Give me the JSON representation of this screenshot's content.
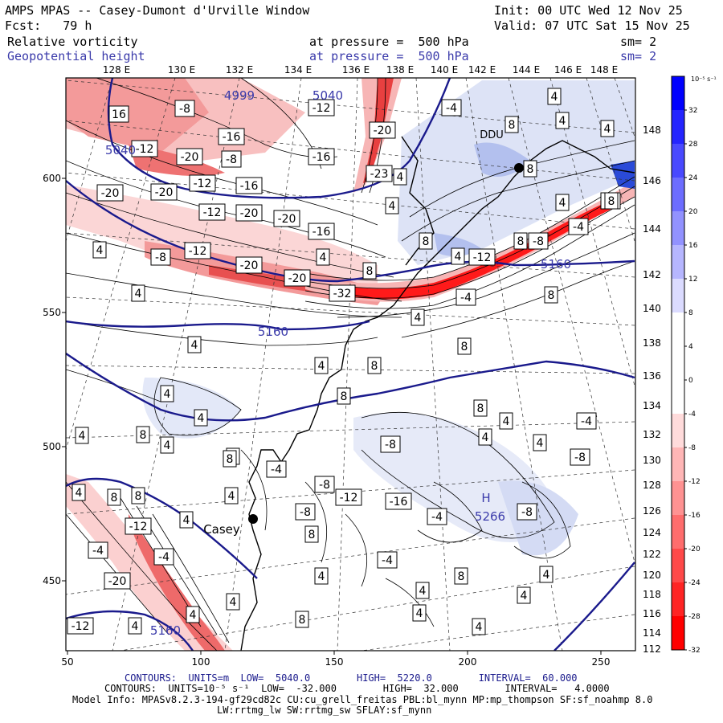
{
  "header": {
    "title": "AMPS MPAS -- Casey-Dumont d'Urville Window",
    "init": "Init: 00 UTC Wed 12 Nov 25",
    "fcst": "Fcst:   79 h",
    "valid": "Valid: 07 UTC Sat 15 Nov 25",
    "field1_name": "Relative vorticity",
    "field1_level": "at pressure =  500 hPa",
    "field1_sm": "sm= 2",
    "field2_name": "Geopotential height",
    "field2_level": "at pressure =  500 hPa",
    "field2_sm": "sm= 2"
  },
  "colors": {
    "contour_blue": "#1a1a8c",
    "text_blue": "#3a3aaa",
    "neg_dark": "#ff0000",
    "pos_dark": "#0000ff"
  },
  "axes": {
    "top_lon_labels": [
      "128 E",
      "130 E",
      "132 E",
      "134 E",
      "136 E",
      "138 E",
      "140 E",
      "142 E",
      "144 E",
      "146 E",
      "148 E"
    ],
    "bottom_x_ticks": [
      "50",
      "100",
      "150",
      "200",
      "250"
    ],
    "left_y_ticks": [
      "600",
      "550",
      "500",
      "450"
    ],
    "right_lat_labels": [
      "148",
      "146",
      "144",
      "142",
      "140",
      "138",
      "136",
      "134",
      "132",
      "130",
      "128",
      "126",
      "124",
      "122",
      "120",
      "118",
      "116",
      "114",
      "112"
    ]
  },
  "colorbar": {
    "unit_label": "10⁻⁵ s⁻¹",
    "tick_labels": [
      "32",
      "28",
      "24",
      "20",
      "16",
      "12",
      "8",
      "4",
      "0",
      "-4",
      "-8",
      "-12",
      "-16",
      "-20",
      "-24",
      "-28",
      "-32"
    ],
    "levels": [
      32,
      28,
      24,
      20,
      16,
      12,
      8,
      4,
      0,
      -4,
      -8,
      -12,
      -16,
      -20,
      -24,
      -28,
      -32
    ]
  },
  "map_labels": {
    "height_labels": [
      "4999",
      "5040",
      "5040",
      "5160",
      "5160",
      "5160"
    ],
    "high_marker": "H",
    "high_value": "5266",
    "station_casey": "Casey",
    "station_ddu": "DDU",
    "vort_boxes": [
      "16",
      "-8",
      "-12",
      "-20",
      "-12",
      "-20",
      "-16",
      "-8",
      "-8",
      "-12",
      "-20",
      "-16",
      "-20",
      "-12",
      "-16",
      "-20",
      "-23",
      "-20",
      "-4",
      "-12",
      "-16",
      "-20",
      "-32",
      "-20",
      "8",
      "4",
      "4",
      "4",
      "4",
      "8",
      "8",
      "-12",
      "-4",
      "-4",
      "-8",
      "4",
      "-4",
      "4",
      "4",
      "8",
      "4",
      "4",
      "4",
      "4",
      "8",
      "4",
      "8",
      "4",
      "4",
      "8",
      "8",
      "4",
      "4",
      "-4",
      "4",
      "-8",
      "4",
      "8",
      "4",
      "8",
      "4",
      "8",
      "-4",
      "-8",
      "-8",
      "-12",
      "-8",
      "-16",
      "-4",
      "-8",
      "4",
      "4",
      "8",
      "4",
      "4",
      "4",
      "-4",
      "4",
      "8",
      "4",
      "4",
      "8",
      "8",
      "4",
      "4",
      "4",
      "-12",
      "-4",
      "-20",
      "-4",
      "-12",
      "8",
      "8",
      "8",
      "4",
      "8"
    ]
  },
  "footer": {
    "line1": "CONTOURS:  UNITS=m  LOW=  5040.0        HIGH=  5220.0        INTERVAL=  60.000",
    "line2": "CONTOURS:  UNITS=10⁻⁵ s⁻¹  LOW=  -32.000        HIGH=  32.000        INTERVAL=   4.0000",
    "line3": "Model Info: MPASv8.2.3-194-gf29cd82c CU:cu_grell_freitas PBL:bl_mynn MP:mp_thompson SF:sf_noahmp 8.0",
    "line4": "LW:rrtmg_lw SW:rrtmg_sw SFLAY:sf_mynn"
  }
}
